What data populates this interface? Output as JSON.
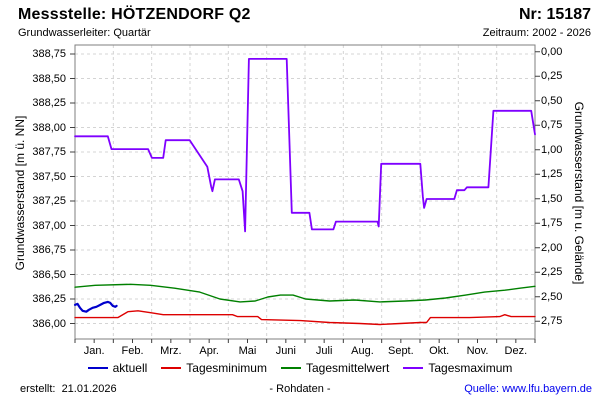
{
  "header": {
    "title": "Messstelle: HÖTZENDORF Q2",
    "number": "Nr: 15187",
    "aquifer": "Grundwasserleiter: Quartär",
    "period": "Zeitraum: 2002 - 2026"
  },
  "chart_data": {
    "type": "line",
    "grid": true,
    "legend_position": "bottom",
    "x_months": [
      "Jan.",
      "Feb.",
      "Mrz.",
      "Apr.",
      "Mai",
      "Juni",
      "Juli",
      "Aug.",
      "Sept.",
      "Okt.",
      "Nov.",
      "Dez."
    ],
    "y_left": {
      "label": "Grundwasserstand [m ü. NN]",
      "ticks": [
        {
          "label": "388,75",
          "value": 388.75
        },
        {
          "label": "388,50",
          "value": 388.5
        },
        {
          "label": "388,25",
          "value": 388.25
        },
        {
          "label": "388,00",
          "value": 388.0
        },
        {
          "label": "387,75",
          "value": 387.75
        },
        {
          "label": "387,50",
          "value": 387.5
        },
        {
          "label": "387,25",
          "value": 387.25
        },
        {
          "label": "387,00",
          "value": 387.0
        },
        {
          "label": "386,75",
          "value": 386.75
        },
        {
          "label": "386,50",
          "value": 386.5
        },
        {
          "label": "386,25",
          "value": 386.25
        },
        {
          "label": "386,00",
          "value": 386.0
        }
      ],
      "range": [
        385.84,
        388.86
      ]
    },
    "y_right": {
      "label": "Grundwasserstand [m u. Gelände]",
      "ticks": [
        {
          "label": "0,00",
          "value": 0.0
        },
        {
          "label": "0,25",
          "value": 0.25
        },
        {
          "label": "0,50",
          "value": 0.5
        },
        {
          "label": "0,75",
          "value": 0.75
        },
        {
          "label": "1,00",
          "value": 1.0
        },
        {
          "label": "1,25",
          "value": 1.25
        },
        {
          "label": "1,50",
          "value": 1.5
        },
        {
          "label": "1,75",
          "value": 1.75
        },
        {
          "label": "2,00",
          "value": 2.0
        },
        {
          "label": "2,25",
          "value": 2.25
        },
        {
          "label": "2,50",
          "value": 2.5
        },
        {
          "label": "2,75",
          "value": 2.75
        }
      ]
    },
    "series": [
      {
        "name": "aktuell",
        "color": "#0000cc",
        "width": 2.2,
        "points": [
          [
            0,
            386.19
          ],
          [
            2,
            386.2
          ],
          [
            4,
            386.16
          ],
          [
            6,
            386.13
          ],
          [
            9,
            386.12
          ],
          [
            11,
            386.14
          ],
          [
            14,
            386.16
          ],
          [
            17,
            386.17
          ],
          [
            20,
            386.19
          ],
          [
            23,
            386.21
          ],
          [
            26,
            386.22
          ],
          [
            28,
            386.21
          ],
          [
            30,
            386.18
          ],
          [
            32,
            386.17
          ],
          [
            33,
            386.18
          ]
        ]
      },
      {
        "name": "Tagesminimum",
        "color": "#dd0000",
        "width": 1.4,
        "points": [
          [
            0,
            386.06
          ],
          [
            34,
            386.06
          ],
          [
            42,
            386.12
          ],
          [
            50,
            386.13
          ],
          [
            60,
            386.11
          ],
          [
            70,
            386.09
          ],
          [
            125,
            386.09
          ],
          [
            129,
            386.07
          ],
          [
            145,
            386.07
          ],
          [
            148,
            386.04
          ],
          [
            179,
            386.03
          ],
          [
            202,
            386.01
          ],
          [
            226,
            386.0
          ],
          [
            242,
            385.99
          ],
          [
            258,
            386.0
          ],
          [
            274,
            386.01
          ],
          [
            279,
            386.01
          ],
          [
            282,
            386.06
          ],
          [
            313,
            386.06
          ],
          [
            337,
            386.07
          ],
          [
            341,
            386.09
          ],
          [
            346,
            386.07
          ],
          [
            365,
            386.07
          ]
        ]
      },
      {
        "name": "Tagesmittelwert",
        "color": "#008000",
        "width": 1.4,
        "points": [
          [
            0,
            386.37
          ],
          [
            16,
            386.39
          ],
          [
            44,
            386.4
          ],
          [
            60,
            386.39
          ],
          [
            79,
            386.36
          ],
          [
            99,
            386.32
          ],
          [
            115,
            386.25
          ],
          [
            131,
            386.22
          ],
          [
            143,
            386.23
          ],
          [
            153,
            386.27
          ],
          [
            163,
            386.29
          ],
          [
            173,
            386.29
          ],
          [
            183,
            386.25
          ],
          [
            202,
            386.23
          ],
          [
            222,
            386.24
          ],
          [
            242,
            386.22
          ],
          [
            262,
            386.23
          ],
          [
            278,
            386.24
          ],
          [
            294,
            386.26
          ],
          [
            310,
            386.29
          ],
          [
            325,
            386.32
          ],
          [
            341,
            386.34
          ],
          [
            353,
            386.36
          ],
          [
            365,
            386.38
          ]
        ]
      },
      {
        "name": "Tagesmaximum",
        "color": "#7f00ff",
        "width": 1.8,
        "points": [
          [
            0,
            387.91
          ],
          [
            26,
            387.91
          ],
          [
            29,
            387.78
          ],
          [
            58,
            387.78
          ],
          [
            61,
            387.69
          ],
          [
            70,
            387.69
          ],
          [
            72,
            387.87
          ],
          [
            91,
            387.87
          ],
          [
            105,
            387.6
          ],
          [
            108,
            387.4
          ],
          [
            109,
            387.35
          ],
          [
            111,
            387.47
          ],
          [
            130,
            387.47
          ],
          [
            133,
            387.35
          ],
          [
            135,
            386.94
          ],
          [
            138,
            388.7
          ],
          [
            168,
            388.7
          ],
          [
            172,
            387.13
          ],
          [
            186,
            387.13
          ],
          [
            188,
            386.96
          ],
          [
            205,
            386.96
          ],
          [
            207,
            387.04
          ],
          [
            240,
            387.04
          ],
          [
            241,
            386.99
          ],
          [
            243,
            387.63
          ],
          [
            274,
            387.63
          ],
          [
            276,
            387.3
          ],
          [
            277,
            387.18
          ],
          [
            279,
            387.27
          ],
          [
            301,
            387.27
          ],
          [
            303,
            387.36
          ],
          [
            309,
            387.36
          ],
          [
            311,
            387.39
          ],
          [
            328,
            387.39
          ],
          [
            332,
            388.17
          ],
          [
            362,
            388.17
          ],
          [
            365,
            387.93
          ]
        ]
      }
    ],
    "colors": {
      "grid": "#d4d4d4",
      "frame": "#7f7f7f",
      "tick": "#404040",
      "link": "#0000ee"
    }
  },
  "footer": {
    "created": "erstellt:  21.01.2026",
    "center": "- Rohdaten -",
    "source": "Quelle: www.lfu.bayern.de"
  }
}
